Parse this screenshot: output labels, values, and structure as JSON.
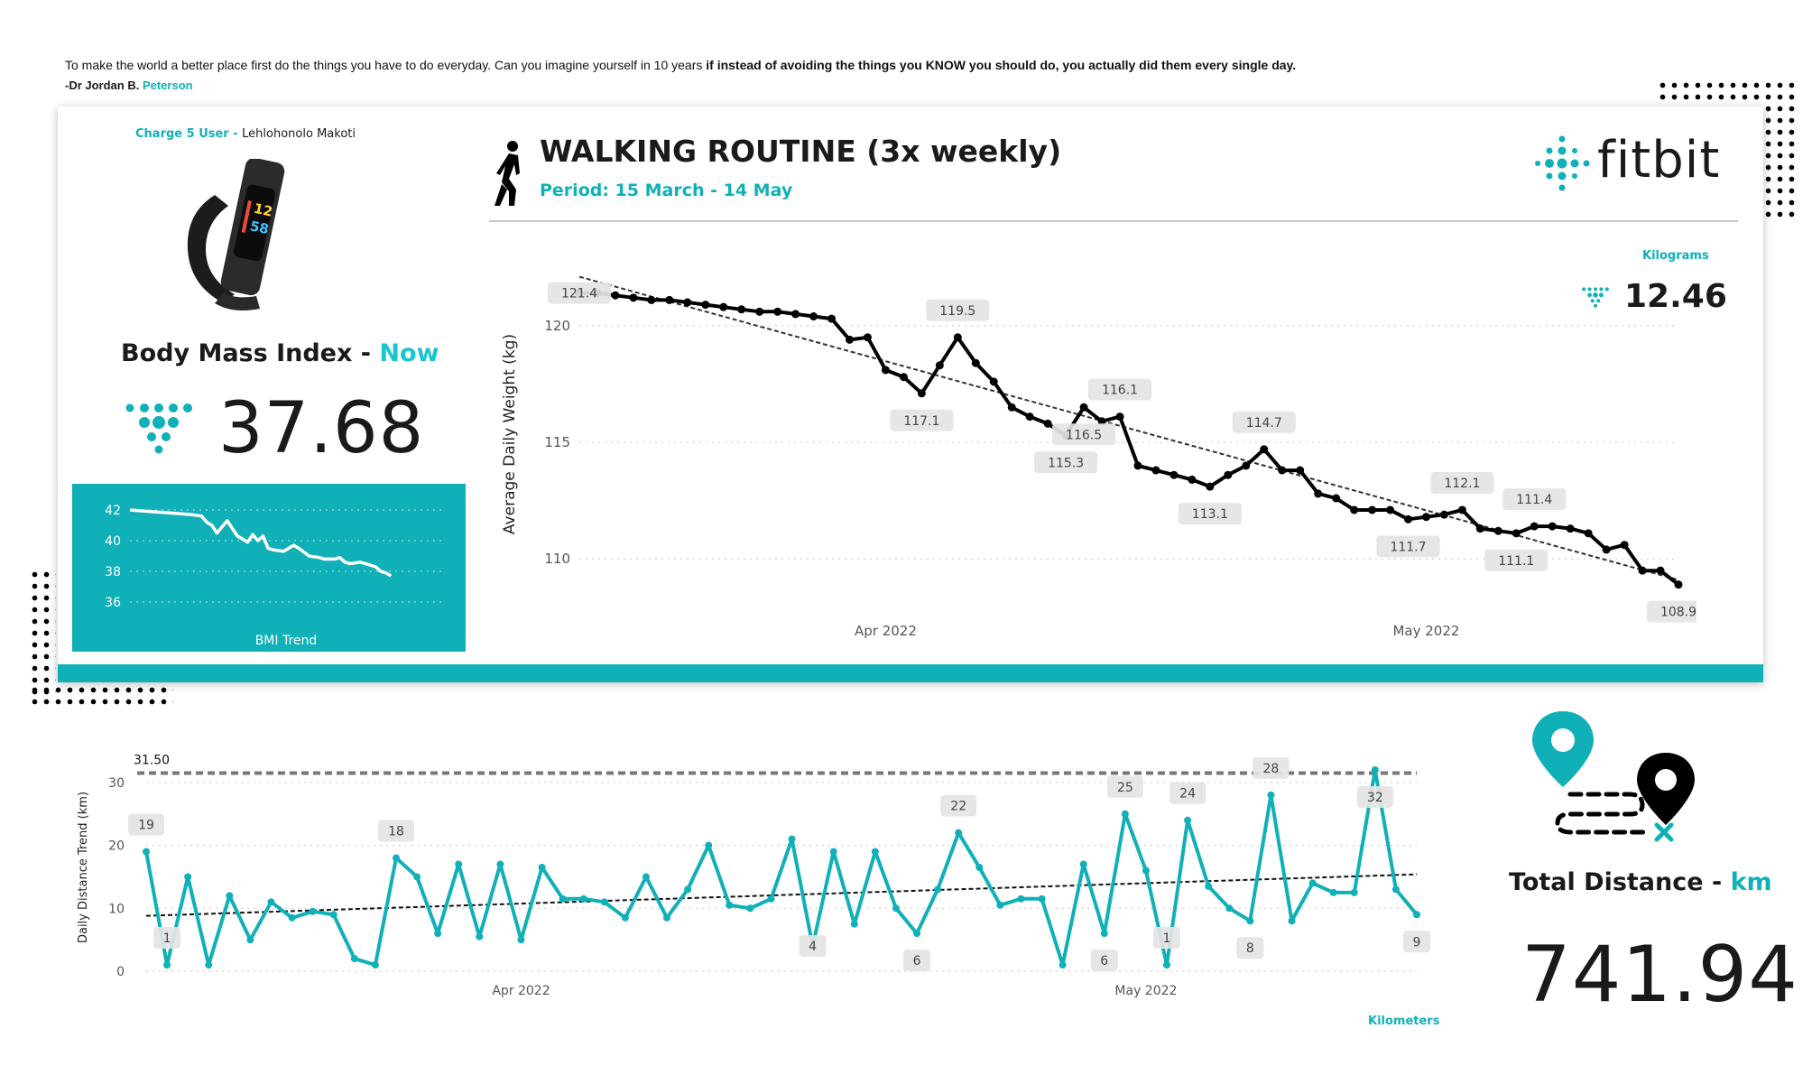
{
  "quote": {
    "text_plain": "To make the world a better place first do the things you have to do everyday. Can you imagine yourself in 10 years ",
    "text_bold": "if instead of avoiding the things you KNOW you should do, you actually did them every single day.",
    "author_prefix": "-Dr Jordan B. ",
    "author_name": "Peterson"
  },
  "user": {
    "label": "Charge 5 User - ",
    "name": "Lehlohonolo Makoti"
  },
  "bmi": {
    "title_prefix": "Body Mass Index - ",
    "title_accent": "Now",
    "value": "37.68",
    "trend_label": "BMI Trend"
  },
  "header": {
    "title": "WALKING ROUTINE (3x weekly)",
    "period": "Period: 15 March - 14 May",
    "brand": "fitbit"
  },
  "weight_kpi": {
    "label": "Kilograms",
    "value": "12.46"
  },
  "distance_kpi": {
    "title_prefix": "Total Distance - ",
    "title_accent": "km",
    "value": "741.94",
    "label": "Kilometers"
  },
  "colors": {
    "teal": "#10b0b8",
    "black": "#000000",
    "grid": "#c9c9c9"
  },
  "icons": [
    "walking-person-icon",
    "fitbit-logo-icon",
    "map-route-icon",
    "fitness-tracker-image"
  ],
  "chart_data": [
    {
      "id": "weight",
      "type": "line",
      "ylabel": "Average Daily Weight (kg)",
      "ylim": [
        108.5,
        122.2
      ],
      "yticks": [
        110,
        115,
        120
      ],
      "xticks": [
        {
          "label": "Apr 2022",
          "x": 17
        },
        {
          "label": "May 2022",
          "x": 47
        }
      ],
      "x_range": [
        0,
        61
      ],
      "trend": [
        [
          0,
          122.1
        ],
        [
          61,
          109.1
        ]
      ],
      "series": [
        {
          "color": "#000000",
          "points": [
            [
              0,
              121.4
            ],
            [
              1,
              121.4
            ],
            [
              2,
              121.3
            ],
            [
              3,
              121.2
            ],
            [
              4,
              121.1
            ],
            [
              5,
              121.1
            ],
            [
              6,
              121.0
            ],
            [
              7,
              120.9
            ],
            [
              8,
              120.8
            ],
            [
              9,
              120.7
            ],
            [
              10,
              120.6
            ],
            [
              11,
              120.6
            ],
            [
              12,
              120.5
            ],
            [
              13,
              120.4
            ],
            [
              14,
              120.3
            ],
            [
              15,
              119.4
            ],
            [
              16,
              119.5
            ],
            [
              17,
              118.1
            ],
            [
              18,
              117.8
            ],
            [
              19,
              117.1
            ],
            [
              20,
              118.3
            ],
            [
              21,
              119.5
            ],
            [
              22,
              118.4
            ],
            [
              23,
              117.6
            ],
            [
              24,
              116.5
            ],
            [
              25,
              116.1
            ],
            [
              26,
              115.8
            ],
            [
              27,
              115.3
            ],
            [
              28,
              116.5
            ],
            [
              29,
              115.9
            ],
            [
              30,
              116.1
            ],
            [
              31,
              114.0
            ],
            [
              32,
              113.8
            ],
            [
              33,
              113.6
            ],
            [
              34,
              113.4
            ],
            [
              35,
              113.1
            ],
            [
              36,
              113.6
            ],
            [
              37,
              114.0
            ],
            [
              38,
              114.7
            ],
            [
              39,
              113.8
            ],
            [
              40,
              113.8
            ],
            [
              41,
              112.8
            ],
            [
              42,
              112.6
            ],
            [
              43,
              112.1
            ],
            [
              44,
              112.1
            ],
            [
              45,
              112.1
            ],
            [
              46,
              111.7
            ],
            [
              47,
              111.8
            ],
            [
              48,
              111.9
            ],
            [
              49,
              112.1
            ],
            [
              50,
              111.3
            ],
            [
              51,
              111.2
            ],
            [
              52,
              111.1
            ],
            [
              53,
              111.4
            ],
            [
              54,
              111.4
            ],
            [
              55,
              111.3
            ],
            [
              56,
              111.1
            ],
            [
              57,
              110.4
            ],
            [
              58,
              110.6
            ],
            [
              59,
              109.5
            ],
            [
              60,
              109.5
            ],
            [
              61,
              108.9
            ]
          ]
        }
      ],
      "data_labels": [
        {
          "x": 0,
          "y": 121.4,
          "text": "121.4",
          "pos": "on"
        },
        {
          "x": 21,
          "y": 119.5,
          "text": "119.5",
          "pos": "above"
        },
        {
          "x": 19,
          "y": 117.1,
          "text": "117.1",
          "pos": "below"
        },
        {
          "x": 30,
          "y": 116.1,
          "text": "116.1",
          "pos": "above"
        },
        {
          "x": 28,
          "y": 116.5,
          "text": "116.5",
          "pos": "below"
        },
        {
          "x": 27,
          "y": 115.3,
          "text": "115.3",
          "pos": "below"
        },
        {
          "x": 35,
          "y": 113.1,
          "text": "113.1",
          "pos": "below"
        },
        {
          "x": 38,
          "y": 114.7,
          "text": "114.7",
          "pos": "above"
        },
        {
          "x": 49,
          "y": 112.1,
          "text": "112.1",
          "pos": "above"
        },
        {
          "x": 46,
          "y": 111.7,
          "text": "111.7",
          "pos": "below"
        },
        {
          "x": 53,
          "y": 111.4,
          "text": "111.4",
          "pos": "above"
        },
        {
          "x": 52,
          "y": 111.1,
          "text": "111.1",
          "pos": "below"
        },
        {
          "x": 61,
          "y": 108.9,
          "text": "108.9",
          "pos": "below"
        }
      ]
    },
    {
      "id": "bmi",
      "type": "line",
      "xlabel": "BMI Trend",
      "ylim": [
        35,
        43
      ],
      "yticks": [
        36,
        38,
        40,
        42
      ],
      "x_range": [
        0,
        61
      ],
      "series": [
        {
          "color": "#ffffff",
          "points": [
            [
              0,
              42.0
            ],
            [
              4,
              41.9
            ],
            [
              8,
              41.8
            ],
            [
              12,
              41.7
            ],
            [
              14,
              41.6
            ],
            [
              15,
              41.2
            ],
            [
              16,
              41.0
            ],
            [
              17,
              40.5
            ],
            [
              19,
              41.3
            ],
            [
              20,
              40.8
            ],
            [
              21,
              40.3
            ],
            [
              22,
              40.1
            ],
            [
              23,
              39.9
            ],
            [
              24,
              40.4
            ],
            [
              25,
              40.0
            ],
            [
              26,
              40.3
            ],
            [
              27,
              39.5
            ],
            [
              28,
              39.4
            ],
            [
              30,
              39.3
            ],
            [
              32,
              39.7
            ],
            [
              33,
              39.5
            ],
            [
              35,
              39.0
            ],
            [
              37,
              38.9
            ],
            [
              38,
              38.8
            ],
            [
              40,
              38.8
            ],
            [
              41,
              38.9
            ],
            [
              42,
              38.6
            ],
            [
              43,
              38.5
            ],
            [
              45,
              38.6
            ],
            [
              47,
              38.4
            ],
            [
              48,
              38.3
            ],
            [
              49,
              38.0
            ],
            [
              50,
              37.9
            ],
            [
              51,
              37.7
            ]
          ]
        }
      ]
    },
    {
      "id": "distance",
      "type": "line",
      "ylabel": "Daily Distance Trend (km)",
      "ylim": [
        0,
        33
      ],
      "yticks": [
        0,
        10,
        20,
        30
      ],
      "xticks": [
        {
          "label": "Apr 2022",
          "x": 18
        },
        {
          "label": "May 2022",
          "x": 48
        }
      ],
      "x_range": [
        0,
        61
      ],
      "reference_line": {
        "value": 31.5,
        "label": "31.50"
      },
      "trend": [
        [
          0,
          8.8
        ],
        [
          61,
          15.4
        ]
      ],
      "series": [
        {
          "color": "#10b0b8",
          "points": [
            [
              0,
              19
            ],
            [
              1,
              1
            ],
            [
              2,
              15
            ],
            [
              3,
              1
            ],
            [
              4,
              12
            ],
            [
              5,
              5
            ],
            [
              6,
              11
            ],
            [
              7,
              8.5
            ],
            [
              8,
              9.5
            ],
            [
              9,
              9
            ],
            [
              10,
              2
            ],
            [
              11,
              1
            ],
            [
              12,
              18
            ],
            [
              13,
              15
            ],
            [
              14,
              6
            ],
            [
              15,
              17
            ],
            [
              16,
              5.5
            ],
            [
              17,
              17
            ],
            [
              18,
              5
            ],
            [
              19,
              16.5
            ],
            [
              20,
              11.5
            ],
            [
              21,
              11.5
            ],
            [
              22,
              11
            ],
            [
              23,
              8.5
            ],
            [
              24,
              15
            ],
            [
              25,
              8.5
            ],
            [
              26,
              13
            ],
            [
              27,
              20
            ],
            [
              28,
              10.5
            ],
            [
              29,
              10
            ],
            [
              30,
              11.5
            ],
            [
              31,
              21
            ],
            [
              32,
              4
            ],
            [
              33,
              19
            ],
            [
              34,
              7.5
            ],
            [
              35,
              19
            ],
            [
              36,
              10
            ],
            [
              37,
              6
            ],
            [
              38,
              13
            ],
            [
              39,
              22
            ],
            [
              40,
              16.5
            ],
            [
              41,
              10.5
            ],
            [
              42,
              11.5
            ],
            [
              43,
              11.5
            ],
            [
              44,
              1
            ],
            [
              45,
              17
            ],
            [
              46,
              6
            ],
            [
              47,
              25
            ],
            [
              48,
              16
            ],
            [
              49,
              1
            ],
            [
              50,
              24
            ],
            [
              51,
              13.5
            ],
            [
              52,
              10
            ],
            [
              53,
              8
            ],
            [
              54,
              28
            ],
            [
              55,
              8
            ],
            [
              56,
              14
            ],
            [
              57,
              12.5
            ],
            [
              58,
              12.5
            ],
            [
              59,
              32
            ],
            [
              60,
              13
            ],
            [
              61,
              9
            ]
          ]
        }
      ],
      "data_labels": [
        {
          "x": 0,
          "y": 19,
          "text": "19",
          "pos": "above"
        },
        {
          "x": 1,
          "y": 1,
          "text": "1",
          "pos": "above"
        },
        {
          "x": 12,
          "y": 18,
          "text": "18",
          "pos": "above"
        },
        {
          "x": 32,
          "y": 4,
          "text": "4",
          "pos": "on"
        },
        {
          "x": 37,
          "y": 6,
          "text": "6",
          "pos": "below"
        },
        {
          "x": 39,
          "y": 22,
          "text": "22",
          "pos": "above"
        },
        {
          "x": 46,
          "y": 6,
          "text": "6",
          "pos": "below"
        },
        {
          "x": 47,
          "y": 25,
          "text": "25",
          "pos": "above"
        },
        {
          "x": 49,
          "y": 1,
          "text": "1",
          "pos": "above"
        },
        {
          "x": 50,
          "y": 24,
          "text": "24",
          "pos": "above"
        },
        {
          "x": 53,
          "y": 8,
          "text": "8",
          "pos": "below"
        },
        {
          "x": 54,
          "y": 28,
          "text": "28",
          "pos": "above"
        },
        {
          "x": 59,
          "y": 32,
          "text": "32",
          "pos": "below"
        },
        {
          "x": 61,
          "y": 9,
          "text": "9",
          "pos": "below"
        }
      ]
    }
  ]
}
